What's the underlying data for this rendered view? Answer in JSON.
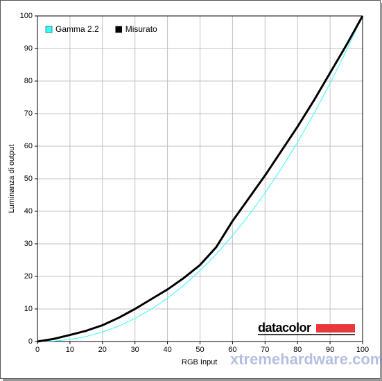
{
  "chart_data": {
    "type": "line",
    "xlabel": "RGB Input",
    "ylabel": "Luminanza di output",
    "x": [
      0,
      5,
      10,
      15,
      20,
      25,
      30,
      35,
      40,
      45,
      50,
      55,
      60,
      65,
      70,
      75,
      80,
      85,
      90,
      95,
      100
    ],
    "series": [
      {
        "name": "Gamma 2.2",
        "color": "#33ffff",
        "width": 1,
        "values": [
          0,
          0.14,
          0.63,
          1.54,
          2.9,
          4.74,
          7.07,
          9.93,
          13.3,
          17.26,
          21.76,
          26.84,
          32.5,
          38.76,
          45.63,
          53.1,
          61.2,
          69.94,
          79.31,
          89.33,
          100
        ]
      },
      {
        "name": "Misurato",
        "color": "#000000",
        "width": 3,
        "values": [
          0,
          0.8,
          2,
          3.3,
          5,
          7.3,
          10,
          13,
          16,
          19.5,
          23.5,
          29,
          37,
          44,
          51,
          58.5,
          66,
          74,
          82.5,
          91,
          100
        ]
      }
    ],
    "xlim": [
      0,
      100
    ],
    "ylim": [
      0,
      100
    ],
    "xticks": [
      0,
      10,
      20,
      30,
      40,
      50,
      60,
      70,
      80,
      90,
      100
    ],
    "yticks": [
      0,
      10,
      20,
      30,
      40,
      50,
      60,
      70,
      80,
      90,
      100
    ],
    "grid": true,
    "legend": "top-left",
    "logo": "datacolor",
    "watermark": "xtremehardware.com"
  }
}
